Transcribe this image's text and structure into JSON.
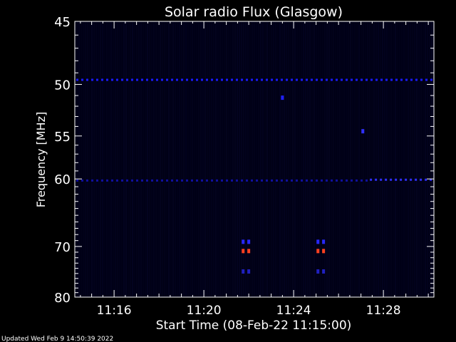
{
  "chart_data": {
    "type": "heatmap",
    "title": "Solar radio Flux (Glasgow)",
    "xlabel": "Start Time (08-Feb-22 11:15:00)",
    "ylabel": "Frequency [MHz]",
    "footer": "Updated Wed Feb  9 14:50:39 2022",
    "xlim": [
      "11:14:15",
      "11:30:15"
    ],
    "ylim": [
      45,
      80
    ],
    "x_ticks": [
      "11:16",
      "11:20",
      "11:24",
      "11:28"
    ],
    "y_ticks": [
      45,
      50,
      55,
      60,
      70,
      80
    ],
    "grid": false,
    "features": [
      {
        "kind": "horizontal-band",
        "freq_mhz": 49.6,
        "t_start": "11:14:15",
        "t_end": "11:30:15",
        "color": "#1a1aff"
      },
      {
        "kind": "horizontal-band",
        "freq_mhz": 60.2,
        "t_start": "11:14:15",
        "t_end": "11:27:20",
        "color": "#1010a0"
      },
      {
        "kind": "horizontal-band",
        "freq_mhz": 60.1,
        "t_start": "11:27:20",
        "t_end": "11:30:15",
        "color": "#3030ff"
      },
      {
        "kind": "spot",
        "freq_mhz": 51.2,
        "time": "11:23:30",
        "color": "#2020ff"
      },
      {
        "kind": "spot",
        "freq_mhz": 54.5,
        "time": "11:27:05",
        "color": "#3030ff"
      },
      {
        "kind": "spot",
        "freq_mhz": 69.2,
        "time": "11:21:45",
        "color": "#2828ff"
      },
      {
        "kind": "spot",
        "freq_mhz": 69.2,
        "time": "11:22:00",
        "color": "#2828ff"
      },
      {
        "kind": "spot",
        "freq_mhz": 70.8,
        "time": "11:21:45",
        "color": "#ff4020"
      },
      {
        "kind": "spot",
        "freq_mhz": 70.8,
        "time": "11:22:00",
        "color": "#ff4020"
      },
      {
        "kind": "spot",
        "freq_mhz": 74.6,
        "time": "11:21:45",
        "color": "#2020c0"
      },
      {
        "kind": "spot",
        "freq_mhz": 74.6,
        "time": "11:22:00",
        "color": "#2020c0"
      },
      {
        "kind": "spot",
        "freq_mhz": 69.2,
        "time": "11:25:05",
        "color": "#2828ff"
      },
      {
        "kind": "spot",
        "freq_mhz": 69.2,
        "time": "11:25:20",
        "color": "#2828ff"
      },
      {
        "kind": "spot",
        "freq_mhz": 70.8,
        "time": "11:25:05",
        "color": "#ff4020"
      },
      {
        "kind": "spot",
        "freq_mhz": 70.8,
        "time": "11:25:20",
        "color": "#ff4020"
      },
      {
        "kind": "spot",
        "freq_mhz": 74.6,
        "time": "11:25:05",
        "color": "#2020c0"
      },
      {
        "kind": "spot",
        "freq_mhz": 74.6,
        "time": "11:25:20",
        "color": "#2020c0"
      }
    ],
    "colors": {
      "background": "#000000",
      "plot_background": "#000015",
      "axis": "#ffffff",
      "text": "#ffffff"
    }
  }
}
